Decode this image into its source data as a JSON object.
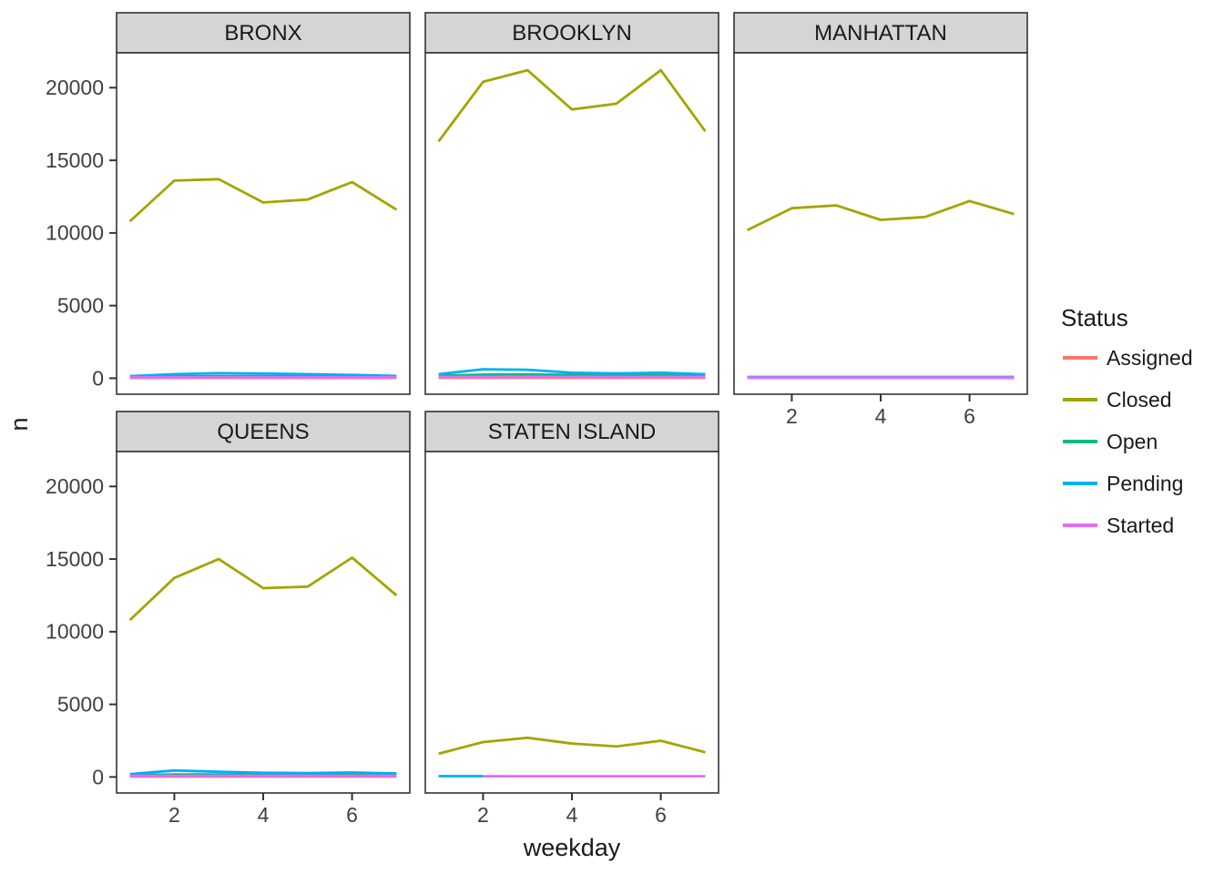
{
  "chart_data": {
    "type": "line",
    "title": "",
    "xlabel": "weekday",
    "ylabel": "n",
    "legend_title": "Status",
    "legend_position": "right",
    "grid": false,
    "x_ticks": [
      2,
      4,
      6
    ],
    "y_ticks": [
      0,
      5000,
      10000,
      15000,
      20000
    ],
    "xlim": [
      0.7,
      7.3
    ],
    "ylim": [
      -1100,
      22400
    ],
    "colors": {
      "Assigned": "#F8766D",
      "Closed": "#A3A500",
      "Open": "#00BF7D",
      "Pending": "#00B0F6",
      "Started": "#E76BF3"
    },
    "panel_fill": "#FFFFFF",
    "panel_border_color": "#333333",
    "strip_fill": "#D5D5D5",
    "strip_text_color": "#1A1A1A",
    "tick_text_color": "#404040",
    "legend_items": [
      {
        "label": "Assigned",
        "color": "#F8766D"
      },
      {
        "label": "Closed",
        "color": "#A3A500"
      },
      {
        "label": "Open",
        "color": "#00BF7D"
      },
      {
        "label": "Pending",
        "color": "#00B0F6"
      },
      {
        "label": "Started",
        "color": "#E76BF3"
      }
    ],
    "facets": [
      {
        "label": "BRONX",
        "series": [
          {
            "name": "Assigned",
            "x": [
              1,
              2,
              3,
              4,
              5,
              6,
              7
            ],
            "values": [
              20,
              20,
              20,
              20,
              20,
              20,
              20
            ]
          },
          {
            "name": "Closed",
            "x": [
              1,
              2,
              3,
              4,
              5,
              6,
              7
            ],
            "values": [
              10800,
              13600,
              13700,
              12100,
              12300,
              13500,
              11600
            ]
          },
          {
            "name": "Open",
            "x": [
              1,
              2,
              3,
              4,
              5,
              6,
              7
            ],
            "values": [
              80,
              130,
              150,
              140,
              120,
              110,
              80
            ]
          },
          {
            "name": "Pending",
            "x": [
              1,
              2,
              3,
              4,
              5,
              6,
              7
            ],
            "values": [
              150,
              280,
              350,
              320,
              280,
              230,
              160
            ]
          },
          {
            "name": "Started",
            "x": [
              1,
              2,
              3,
              4,
              5,
              6,
              7
            ],
            "values": [
              60,
              60,
              60,
              60,
              60,
              60,
              60
            ]
          }
        ]
      },
      {
        "label": "BROOKLYN",
        "series": [
          {
            "name": "Assigned",
            "x": [
              1,
              2,
              3,
              4,
              5,
              6,
              7
            ],
            "values": [
              30,
              30,
              30,
              30,
              30,
              30,
              30
            ]
          },
          {
            "name": "Closed",
            "x": [
              1,
              2,
              3,
              4,
              5,
              6,
              7
            ],
            "values": [
              16300,
              20400,
              21200,
              18500,
              18900,
              21200,
              17000
            ]
          },
          {
            "name": "Open",
            "x": [
              1,
              2,
              3,
              4,
              5,
              6,
              7
            ],
            "values": [
              180,
              250,
              260,
              230,
              210,
              210,
              180
            ]
          },
          {
            "name": "Pending",
            "x": [
              1,
              2,
              3,
              4,
              5,
              6,
              7
            ],
            "values": [
              280,
              620,
              580,
              380,
              330,
              380,
              280
            ]
          },
          {
            "name": "Started",
            "x": [
              1,
              2,
              3,
              4,
              5,
              6,
              7
            ],
            "values": [
              90,
              90,
              90,
              90,
              90,
              90,
              90
            ]
          }
        ]
      },
      {
        "label": "MANHATTAN",
        "series": [
          {
            "name": "Assigned",
            "x": [
              1,
              2,
              3,
              4,
              5,
              6,
              7
            ],
            "values": [
              20,
              20,
              20,
              20,
              20,
              20,
              20
            ]
          },
          {
            "name": "Closed",
            "x": [
              1,
              2,
              3,
              4,
              5,
              6,
              7
            ],
            "values": [
              10200,
              11700,
              11900,
              10900,
              11100,
              12200,
              11300
            ]
          },
          {
            "name": "Open",
            "x": [
              1,
              2,
              3,
              4,
              5,
              6,
              7
            ],
            "values": [
              60,
              60,
              60,
              60,
              60,
              60,
              60
            ]
          },
          {
            "name": "Pending",
            "x": [
              1,
              2,
              3,
              4,
              5,
              6,
              7
            ],
            "values": [
              90,
              90,
              90,
              90,
              90,
              90,
              90
            ]
          },
          {
            "name": "Started",
            "x": [
              1,
              2,
              3,
              4,
              5,
              6,
              7
            ],
            "values": [
              40,
              40,
              40,
              40,
              40,
              40,
              40
            ]
          }
        ]
      },
      {
        "label": "QUEENS",
        "series": [
          {
            "name": "Assigned",
            "x": [
              1,
              2,
              3,
              4,
              5,
              6,
              7
            ],
            "values": [
              25,
              25,
              25,
              25,
              25,
              25,
              25
            ]
          },
          {
            "name": "Closed",
            "x": [
              1,
              2,
              3,
              4,
              5,
              6,
              7
            ],
            "values": [
              10800,
              13700,
              15000,
              13000,
              13100,
              15100,
              12500
            ]
          },
          {
            "name": "Open",
            "x": [
              1,
              2,
              3,
              4,
              5,
              6,
              7
            ],
            "values": [
              120,
              170,
              180,
              150,
              140,
              150,
              120
            ]
          },
          {
            "name": "Pending",
            "x": [
              1,
              2,
              3,
              4,
              5,
              6,
              7
            ],
            "values": [
              200,
              450,
              360,
              290,
              270,
              310,
              250
            ]
          },
          {
            "name": "Started",
            "x": [
              1,
              2,
              3,
              4,
              5,
              6,
              7
            ],
            "values": [
              80,
              80,
              80,
              80,
              80,
              80,
              80
            ]
          }
        ]
      },
      {
        "label": "STATEN ISLAND",
        "series": [
          {
            "name": "Closed",
            "x": [
              1,
              2,
              3,
              4,
              5,
              6,
              7
            ],
            "values": [
              1600,
              2400,
              2700,
              2300,
              2100,
              2500,
              1700
            ]
          },
          {
            "name": "Pending",
            "x": [
              1,
              2
            ],
            "values": [
              60,
              60
            ]
          },
          {
            "name": "Started",
            "x": [
              2,
              3,
              4,
              5,
              6,
              7
            ],
            "values": [
              50,
              50,
              50,
              50,
              50,
              50
            ]
          }
        ]
      }
    ]
  }
}
